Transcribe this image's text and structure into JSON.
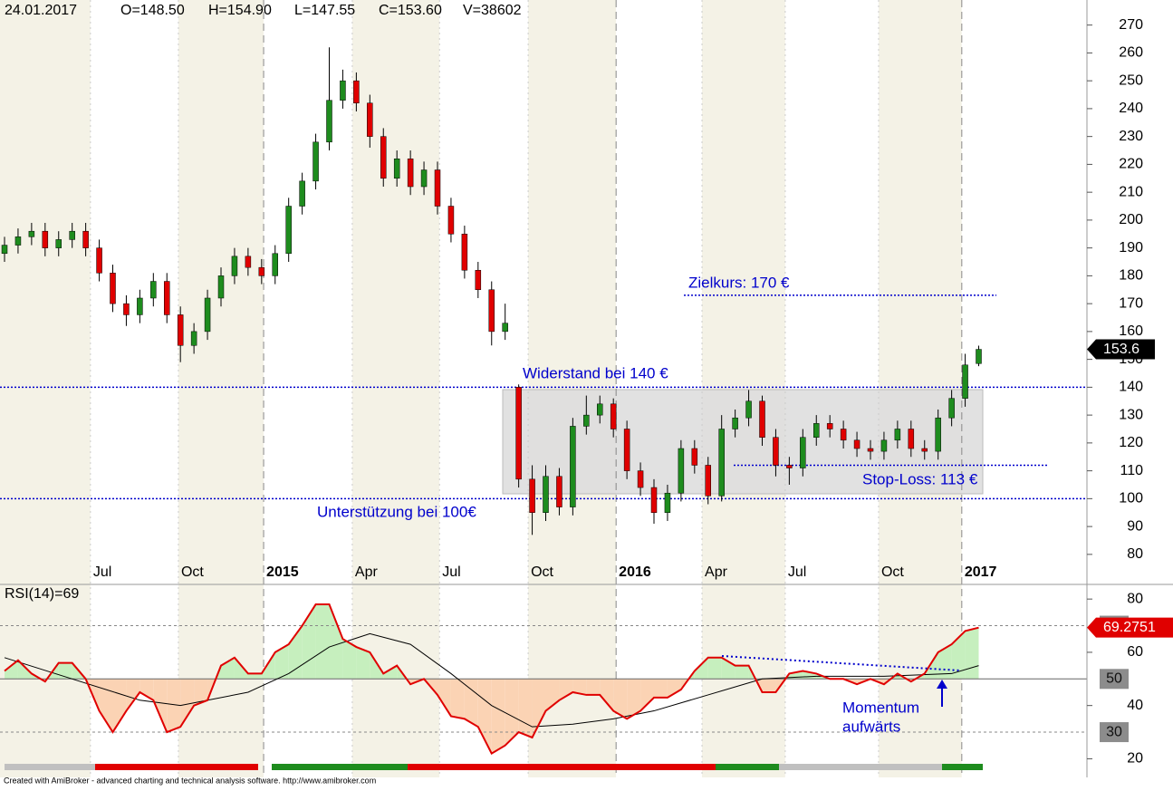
{
  "chart_data": [
    {
      "type": "candlestick",
      "header": {
        "date": "24.01.2017",
        "open": "O=148.50",
        "high": "H=154.90",
        "low": "L=147.55",
        "close": "C=153.60",
        "volume": "V=38602"
      },
      "x": [
        0,
        2,
        4,
        6,
        8,
        10,
        12,
        14,
        16,
        18,
        20,
        22,
        24,
        26,
        28,
        30,
        32,
        34,
        36,
        38,
        40,
        42,
        44,
        46,
        48,
        50,
        52,
        54,
        56,
        58,
        60,
        62,
        64,
        66,
        68,
        70,
        72,
        74,
        76,
        78,
        80,
        82,
        84,
        86,
        88,
        90,
        92,
        94,
        96,
        98,
        100,
        102,
        104,
        106,
        108,
        110,
        112,
        114,
        116,
        118,
        120,
        122,
        124,
        126,
        128,
        130,
        132,
        134,
        136,
        138,
        140,
        142,
        144
      ],
      "open": [
        188,
        191,
        194,
        196,
        190,
        193,
        196,
        190,
        181,
        170,
        166,
        172,
        178,
        166,
        155,
        160,
        172,
        180,
        187,
        183,
        180,
        188,
        205,
        214,
        228,
        243,
        250,
        242,
        230,
        215,
        222,
        212,
        218,
        205,
        195,
        182,
        175,
        160,
        140,
        107,
        95,
        108,
        97,
        126,
        130,
        134,
        125,
        110,
        104,
        95,
        102,
        118,
        112,
        101,
        125,
        129,
        135,
        122,
        112,
        111,
        122,
        127,
        125,
        121,
        118,
        117,
        121,
        125,
        118,
        117,
        129,
        136,
        148.5
      ],
      "high": [
        194,
        197,
        199,
        199,
        196,
        199,
        199,
        193,
        184,
        173,
        175,
        181,
        181,
        169,
        163,
        175,
        183,
        190,
        190,
        186,
        191,
        208,
        217,
        231,
        262,
        254,
        253,
        245,
        233,
        225,
        225,
        221,
        221,
        208,
        198,
        185,
        178,
        170,
        141,
        112,
        112,
        111,
        129,
        137,
        137,
        136,
        128,
        113,
        107,
        105,
        121,
        121,
        115,
        130,
        132,
        139,
        137,
        125,
        115,
        125,
        130,
        130,
        128,
        124,
        121,
        124,
        128,
        128,
        121,
        132,
        139,
        152,
        154.9
      ],
      "low": [
        185,
        188,
        191,
        187,
        187,
        190,
        187,
        178,
        167,
        162,
        163,
        169,
        163,
        149,
        152,
        157,
        169,
        177,
        180,
        177,
        177,
        185,
        202,
        211,
        225,
        240,
        239,
        226,
        212,
        212,
        209,
        209,
        202,
        192,
        179,
        172,
        155,
        157,
        104,
        87,
        92,
        94,
        94,
        123,
        127,
        122,
        107,
        101,
        91,
        92,
        99,
        109,
        98,
        99,
        122,
        126,
        119,
        108,
        105,
        108,
        119,
        122,
        118,
        115,
        114,
        114,
        118,
        115,
        114,
        114,
        126,
        133,
        147.55
      ],
      "close": [
        191,
        194,
        196,
        190,
        193,
        196,
        190,
        181,
        170,
        166,
        172,
        178,
        166,
        155,
        160,
        172,
        180,
        187,
        183,
        180,
        188,
        205,
        214,
        228,
        243,
        250,
        242,
        230,
        215,
        222,
        212,
        218,
        205,
        195,
        182,
        175,
        160,
        163,
        107,
        95,
        108,
        97,
        126,
        130,
        134,
        125,
        110,
        104,
        95,
        102,
        118,
        112,
        101,
        125,
        129,
        135,
        122,
        112,
        111,
        122,
        127,
        125,
        121,
        118,
        117,
        121,
        125,
        118,
        117,
        129,
        136,
        148,
        153.6
      ],
      "up_color": "#1e8c1e",
      "down_color": "#e00000",
      "xlim": [
        0,
        160
      ],
      "xticks": [
        {
          "value": 12.7,
          "label": "Jul"
        },
        {
          "value": 25.7,
          "label": "Oct"
        },
        {
          "value": 38.3,
          "label": "2015"
        },
        {
          "value": 51.4,
          "label": "Apr"
        },
        {
          "value": 64.3,
          "label": "Jul"
        },
        {
          "value": 77.4,
          "label": "Oct"
        },
        {
          "value": 90.4,
          "label": "2016"
        },
        {
          "value": 103.1,
          "label": "Apr"
        },
        {
          "value": 115.4,
          "label": "Jul"
        },
        {
          "value": 129.2,
          "label": "Oct"
        },
        {
          "value": 141.5,
          "label": "2017"
        }
      ],
      "ylim": [
        78,
        279
      ],
      "yticks": [
        80,
        90,
        100,
        110,
        120,
        130,
        140,
        150,
        160,
        170,
        180,
        190,
        200,
        210,
        220,
        230,
        240,
        250,
        260,
        270
      ],
      "annotations": [
        {
          "text": "Zielkurs: 170 €",
          "value": 173
        },
        {
          "text": "Widerstand bei 140 €",
          "value": 140
        },
        {
          "text": "Unterstützung bei 100€",
          "value": 100
        },
        {
          "text": "Stop-Loss: 113 €",
          "value": 112
        }
      ]
    },
    {
      "type": "line",
      "title": "RSI(14)=69",
      "x": [
        0,
        2,
        4,
        6,
        8,
        10,
        12,
        14,
        16,
        18,
        20,
        22,
        24,
        26,
        28,
        30,
        32,
        34,
        36,
        38,
        40,
        42,
        44,
        46,
        48,
        50,
        52,
        54,
        56,
        58,
        60,
        62,
        64,
        66,
        68,
        70,
        72,
        74,
        76,
        78,
        80,
        82,
        84,
        86,
        88,
        90,
        92,
        94,
        96,
        98,
        100,
        102,
        104,
        106,
        108,
        110,
        112,
        114,
        116,
        118,
        120,
        122,
        124,
        126,
        128,
        130,
        132,
        134,
        136,
        138,
        140,
        142,
        144
      ],
      "values": [
        53,
        57,
        52,
        49,
        56,
        56,
        50,
        38,
        30,
        38,
        45,
        42,
        30,
        32,
        40,
        42,
        55,
        58,
        52,
        52,
        60,
        63,
        70,
        78,
        78,
        65,
        62,
        60,
        52,
        55,
        48,
        50,
        44,
        36,
        35,
        32,
        22,
        25,
        30,
        28,
        38,
        42,
        45,
        44,
        44,
        38,
        35,
        38,
        43,
        43,
        46,
        53,
        58,
        58,
        55,
        55,
        45,
        45,
        52,
        53,
        52,
        50,
        50,
        48,
        50,
        48,
        52,
        49,
        52,
        60,
        63,
        68,
        69.2751
      ],
      "color": "#e00000",
      "signal": {
        "x": [
          0,
          10,
          20,
          26,
          36,
          42,
          48,
          54,
          60,
          66,
          72,
          78,
          84,
          90,
          96,
          104,
          112,
          120,
          130,
          140,
          144
        ],
        "values": [
          58,
          50,
          42,
          40,
          45,
          52,
          62,
          67,
          63,
          52,
          40,
          32,
          33,
          35,
          38,
          44,
          50,
          51,
          51,
          52,
          55
        ],
        "color": "#000000"
      },
      "ylim": [
        13,
        85.5
      ],
      "yticks": [
        20,
        40,
        60,
        80
      ],
      "levels": [
        30,
        50,
        70
      ],
      "annotation": [
        "Momentum",
        "aufwärts"
      ]
    }
  ],
  "footer": "Created with AmiBroker - advanced charting and technical analysis software. http://www.amibroker.com"
}
